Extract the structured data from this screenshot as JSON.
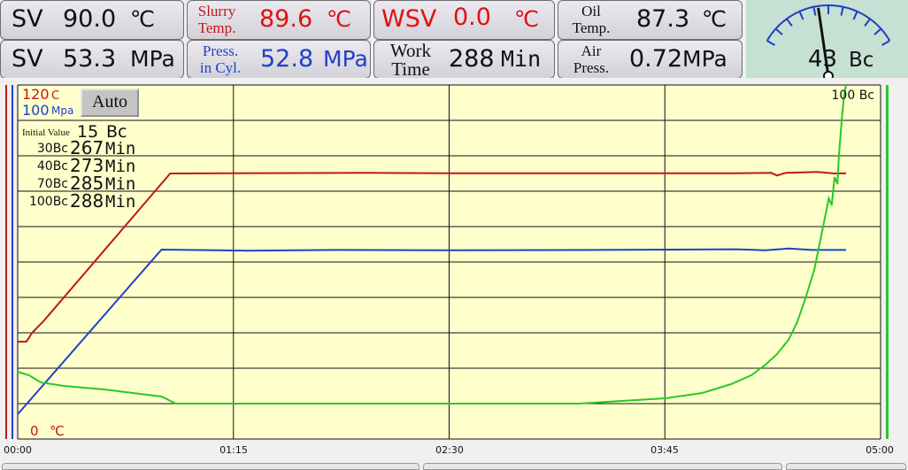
{
  "panels": {
    "sv_temp": {
      "label": "SV",
      "value": "90.0",
      "unit": "℃"
    },
    "slurry_temp": {
      "label_line1": "Slurry",
      "label_line2": "Temp.",
      "value": "89.6",
      "unit": "℃"
    },
    "wsv": {
      "label": "WSV",
      "value": "0.0",
      "unit": "℃"
    },
    "oil_temp": {
      "label_line1": "Oil",
      "label_line2": "Temp.",
      "value": "87.3",
      "unit": "℃"
    },
    "sv_press": {
      "label": "SV",
      "value": "53.3",
      "unit": "MPa"
    },
    "press_cyl": {
      "label_line1": "Press.",
      "label_line2": "in Cyl.",
      "value": "52.8",
      "unit": "MPa"
    },
    "work_time": {
      "label_line1": "Work",
      "label_line2": "Time",
      "value": "288",
      "unit": "Min"
    },
    "air_press": {
      "label_line1": "Air",
      "label_line2": "Press.",
      "value": "0.72",
      "unit": "MPa"
    }
  },
  "gauge": {
    "value_text": "43",
    "unit": "Bc",
    "value": 43,
    "max": 100
  },
  "controls": {
    "auto_label": "Auto"
  },
  "chart_data": {
    "type": "line",
    "x_ticks": [
      "00:00",
      "01:15",
      "02:30",
      "03:45",
      "05:00"
    ],
    "xlim_min": [
      0,
      300
    ],
    "left_axis": {
      "temp_max": "120",
      "temp_unit": "C",
      "press_max": "100",
      "press_unit": "Mpa",
      "temp_min": "0",
      "temp_min_unit": "℃"
    },
    "right_axis": {
      "max_label": "100 Bc"
    },
    "grid": true,
    "initial_value": {
      "label": "Initial Value",
      "value": "15",
      "unit": "Bc"
    },
    "thickening_times": [
      {
        "bc": "30Bc",
        "minutes": "267",
        "unit": "Min"
      },
      {
        "bc": "40Bc",
        "minutes": "273",
        "unit": "Min"
      },
      {
        "bc": "70Bc",
        "minutes": "285",
        "unit": "Min"
      },
      {
        "bc": "100Bc",
        "minutes": "288",
        "unit": "Min"
      }
    ],
    "series": [
      {
        "key": "temperature",
        "color": "#c01818",
        "scale_max": 120,
        "points": [
          [
            0,
            33
          ],
          [
            3,
            33
          ],
          [
            5,
            36
          ],
          [
            7,
            38
          ],
          [
            9,
            40
          ],
          [
            53,
            90
          ],
          [
            54,
            90
          ],
          [
            120,
            90.2
          ],
          [
            150,
            90.1
          ],
          [
            200,
            90.1
          ],
          [
            250,
            90.1
          ],
          [
            262,
            90.2
          ],
          [
            264,
            89.3
          ],
          [
            267,
            90.2
          ],
          [
            278,
            90.5
          ],
          [
            284,
            90.0
          ],
          [
            288,
            90.1
          ]
        ]
      },
      {
        "key": "pressure",
        "color": "#2040c8",
        "scale_max": 100,
        "points": [
          [
            0,
            7
          ],
          [
            50,
            53.5
          ],
          [
            80,
            53.2
          ],
          [
            110,
            53.4
          ],
          [
            150,
            53.3
          ],
          [
            200,
            53.4
          ],
          [
            250,
            53.6
          ],
          [
            260,
            53.3
          ],
          [
            268,
            53.8
          ],
          [
            276,
            53.4
          ],
          [
            288,
            53.4
          ]
        ]
      },
      {
        "key": "consistency",
        "color": "#28c828",
        "scale_max": 100,
        "points": [
          [
            0,
            19
          ],
          [
            4,
            18
          ],
          [
            8,
            16
          ],
          [
            16,
            15
          ],
          [
            30,
            14
          ],
          [
            50,
            12
          ],
          [
            55,
            10
          ],
          [
            60,
            10
          ],
          [
            150,
            10
          ],
          [
            195,
            10
          ],
          [
            215,
            11
          ],
          [
            225,
            11.5
          ],
          [
            238,
            13
          ],
          [
            248,
            15.5
          ],
          [
            255,
            18
          ],
          [
            260,
            21
          ],
          [
            264,
            24
          ],
          [
            268,
            28
          ],
          [
            271,
            33
          ],
          [
            274,
            40
          ],
          [
            277,
            48
          ],
          [
            279,
            56
          ],
          [
            281,
            64
          ],
          [
            282,
            68
          ],
          [
            283,
            66
          ],
          [
            284,
            74
          ],
          [
            285,
            72
          ],
          [
            285.5,
            80
          ],
          [
            286.5,
            90
          ],
          [
            287.3,
            97
          ],
          [
            288,
            100
          ]
        ]
      }
    ]
  },
  "colors": {
    "temperature": "#c01818",
    "pressure": "#2040c8",
    "consistency": "#28c828",
    "plot_bg": "#ffffcc",
    "gauge_bg": "#c6e0d4",
    "gauge_scale": "#1f3fc0"
  }
}
